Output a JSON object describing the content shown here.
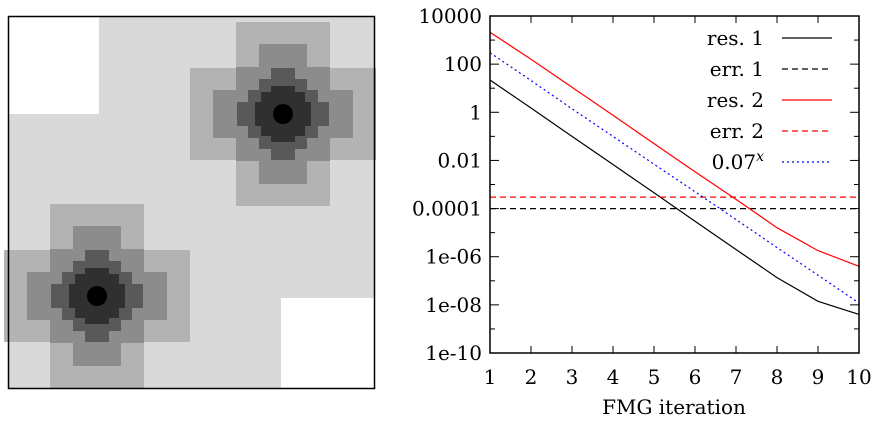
{
  "chart_data": [
    {
      "type": "heatmap",
      "description_free": true,
      "colors": {
        "background": "#ffffff",
        "level1": "#d9d9d9",
        "level2": "#b3b3b3",
        "level3": "#8c8c8c",
        "level4": "#595959",
        "level5": "#303030",
        "core": "#000000"
      }
    },
    {
      "type": "line",
      "xlabel": "FMG iteration",
      "ylabel": "",
      "title": "",
      "x_ticks": [
        "1",
        "2",
        "3",
        "4",
        "5",
        "6",
        "7",
        "8",
        "9",
        "10"
      ],
      "y_ticks": [
        "1e-10",
        "1e-08",
        "1e-06",
        "0.0001",
        "0.01",
        "1",
        "100",
        "10000"
      ],
      "xlim": [
        1,
        10
      ],
      "ylim": [
        1e-10,
        10000
      ],
      "yscale": "log",
      "legend_position": "top-right",
      "series": [
        {
          "name": "res. 1",
          "color": "#000000",
          "dash": "solid",
          "x": [
            1,
            2,
            3,
            4,
            5,
            6,
            7,
            8,
            9,
            10
          ],
          "y": [
            22,
            1.5,
            0.1,
            0.0068,
            0.00045,
            3e-05,
            2e-06,
            1.35e-07,
            1.4e-08,
            4e-09
          ]
        },
        {
          "name": "err. 1",
          "color": "#000000",
          "dash": "dashed",
          "x": [
            1,
            10
          ],
          "y": [
            0.0001,
            0.0001
          ]
        },
        {
          "name": "res. 2",
          "color": "#ff0000",
          "dash": "solid",
          "x": [
            1,
            2,
            3,
            4,
            5,
            6,
            7,
            8,
            9,
            10
          ],
          "y": [
            2100,
            160,
            11,
            0.75,
            0.05,
            0.0034,
            0.00024,
            1.6e-05,
            1.8e-06,
            4e-07
          ]
        },
        {
          "name": "err. 2",
          "color": "#ff0000",
          "dash": "dashed",
          "x": [
            1,
            10
          ],
          "y": [
            0.0003,
            0.0003
          ]
        },
        {
          "name": "0.07^x",
          "color": "#0000ff",
          "dash": "dotted",
          "x": [
            1,
            2,
            3,
            4,
            5,
            6,
            7,
            8,
            9,
            10
          ],
          "y": [
            300,
            21,
            1.4,
            0.1,
            0.007,
            0.0005,
            3.5e-05,
            2.4e-06,
            1.7e-07,
            1.2e-08
          ]
        }
      ]
    }
  ]
}
